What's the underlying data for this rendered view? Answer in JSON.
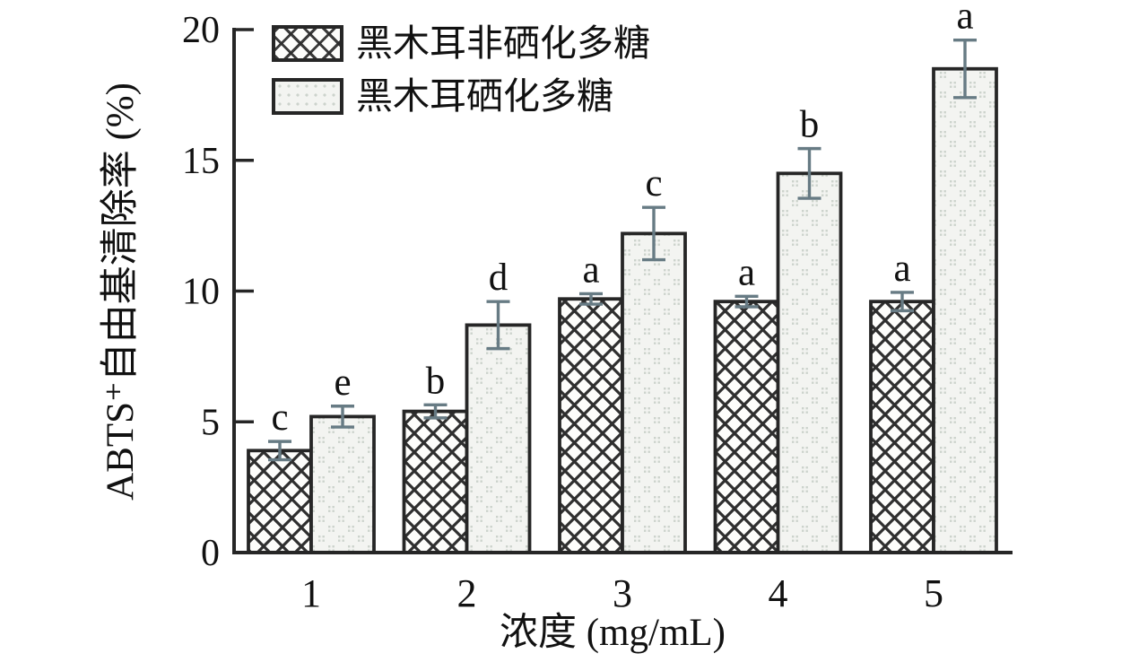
{
  "chart_data": {
    "type": "bar",
    "title": "",
    "categories": [
      "1",
      "2",
      "3",
      "4",
      "5"
    ],
    "xlabel": "浓度 (mg/mL)",
    "ylabel": "ABTS⁺自由基清除率 (%)",
    "ylim": [
      0,
      20
    ],
    "yticks": [
      0,
      5,
      10,
      15,
      20
    ],
    "grid": false,
    "legend_position": "top-left",
    "series": [
      {
        "id": "non-selenized",
        "name": "黑木耳非硒化多糖",
        "pattern": "crosshatch",
        "values": [
          3.9,
          5.4,
          9.7,
          9.6,
          9.6
        ],
        "errors": [
          0.35,
          0.25,
          0.2,
          0.2,
          0.35
        ],
        "sig_letters": [
          "c",
          "b",
          "a",
          "a",
          "a"
        ]
      },
      {
        "id": "selenized",
        "name": "黑木耳硒化多糖",
        "pattern": "dotted",
        "values": [
          5.2,
          8.7,
          12.2,
          14.5,
          18.5
        ],
        "errors": [
          0.4,
          0.9,
          1.0,
          0.95,
          1.1
        ],
        "sig_letters": [
          "e",
          "d",
          "c",
          "b",
          "a"
        ]
      }
    ]
  },
  "colors": {
    "background": "#ffffff",
    "axis": "#262626",
    "bar_outline": "#262626",
    "hatch": "#2f2f2f",
    "light_fill": "#f3f4f1",
    "dot_texture": "#ccd3cc",
    "error_bar": "#677b84",
    "text": "#111111"
  }
}
